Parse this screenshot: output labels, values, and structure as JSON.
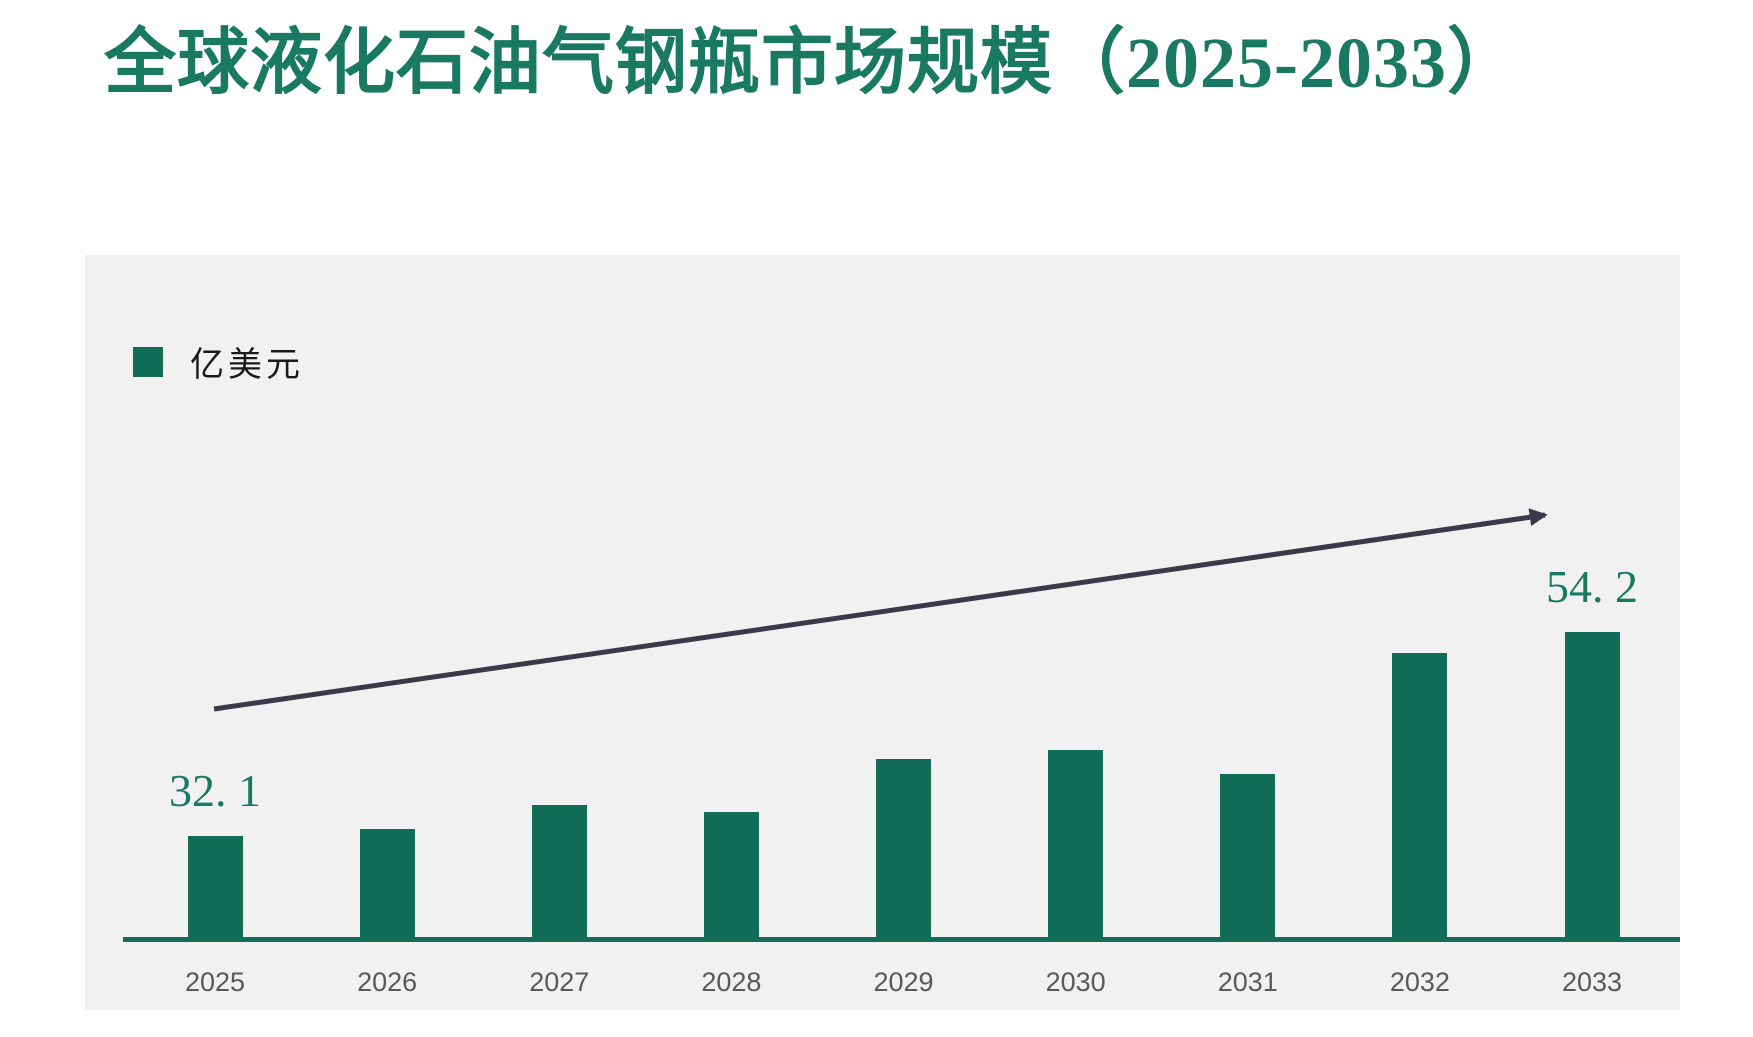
{
  "page": {
    "title": "全球液化石油气钢瓶市场规模（2025-2033）"
  },
  "legend": {
    "unit_label": "亿美元"
  },
  "chart_data": {
    "type": "bar",
    "title": "全球液化石油气钢瓶市场规模（2025-2033）",
    "categories": [
      "2025",
      "2026",
      "2027",
      "2028",
      "2029",
      "2030",
      "2031",
      "2032",
      "2033"
    ],
    "values": [
      32.1,
      32.8,
      35.4,
      34.7,
      40.4,
      41.4,
      38.8,
      51.9,
      54.2
    ],
    "labeled_points": [
      {
        "category": "2025",
        "label": "32. 1"
      },
      {
        "category": "2033",
        "label": "54. 2"
      }
    ],
    "legend_entries": [
      "亿美元"
    ],
    "legend_position": "top-left",
    "xlabel": "",
    "ylabel": "",
    "ylim": [
      20.6,
      60
    ],
    "grid": false,
    "y_axis_visible": false,
    "annotations": [
      "upward-trend-arrow"
    ]
  },
  "colors": {
    "title_text": "#1A7A61",
    "bar_fill": "#126D57",
    "axis_line": "#126D57",
    "trend_arrow": "#3A3949",
    "x_tick_label": "#595959",
    "data_label": "#1A7A61",
    "panel_background": "#F1F1F1",
    "page_background": "#FFFFFF",
    "legend_text": "#1A1A1A"
  }
}
